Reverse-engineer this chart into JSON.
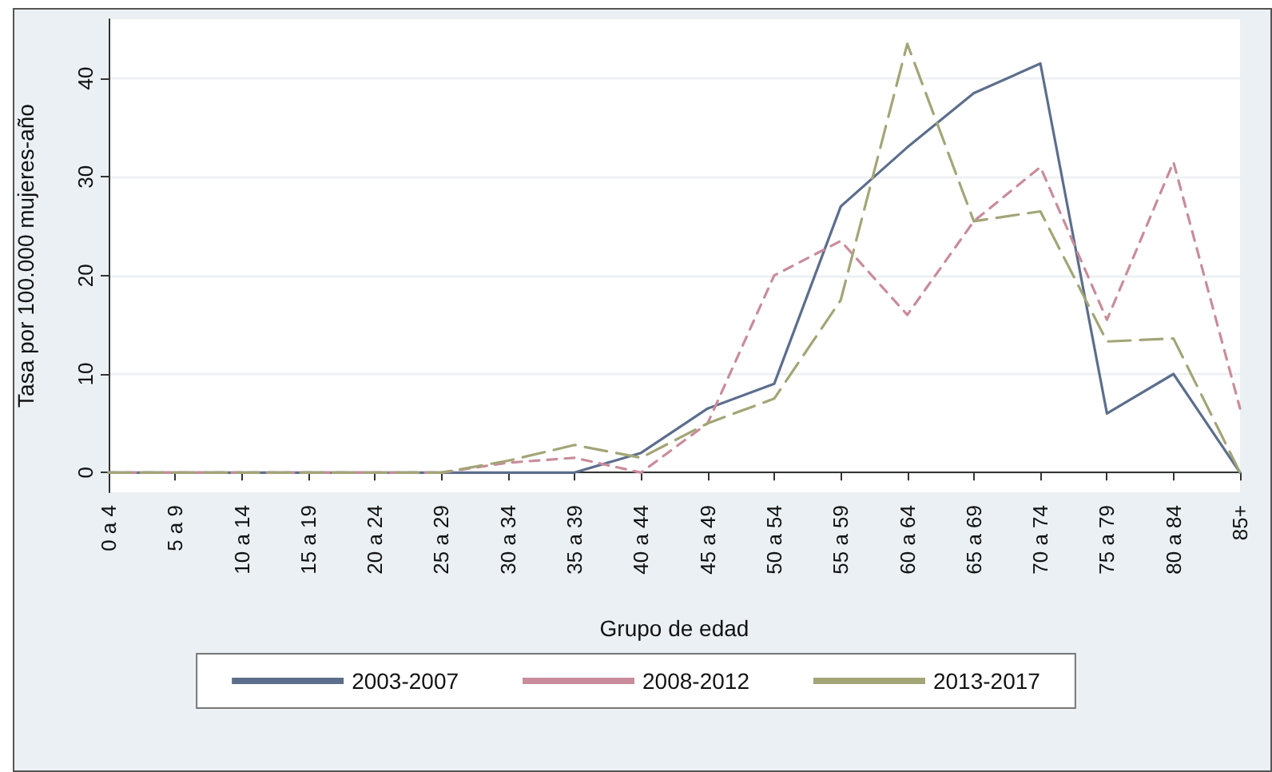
{
  "chart_data": {
    "type": "line",
    "xlabel": "Grupo de edad",
    "ylabel": "Tasa por 100.000 mujeres-año",
    "categories": [
      "0 a 4",
      "5 a 9",
      "10 a 14",
      "15 a 19",
      "20 a 24",
      "25 a 29",
      "30 a 34",
      "35 a 39",
      "40 a 44",
      "45 a 49",
      "50 a 54",
      "55 a 59",
      "60 a 64",
      "65 a 69",
      "70 a 74",
      "75 a 79",
      "80 a 84",
      "85+"
    ],
    "series": [
      {
        "name": "2003-2007",
        "color": "#5c6e8c",
        "line_style": "solid",
        "values": [
          0,
          0,
          0,
          0,
          0,
          0,
          0,
          0,
          2,
          6.5,
          9,
          27,
          33,
          38.5,
          41.5,
          6,
          10,
          0
        ]
      },
      {
        "name": "2008-2012",
        "color": "#c98c9a",
        "line_style": "dashed",
        "values": [
          0,
          0,
          0,
          0,
          0,
          0,
          1,
          1.5,
          0,
          5,
          20,
          23.5,
          16,
          25.5,
          31,
          15.5,
          31.5,
          6.5
        ]
      },
      {
        "name": "2013-2017",
        "color": "#a3a577",
        "line_style": "dashed",
        "values": [
          0,
          0,
          0,
          0,
          0,
          0,
          1.2,
          2.8,
          1.5,
          5,
          7.5,
          17.5,
          43.5,
          25.5,
          26.5,
          13.3,
          13.6,
          0
        ]
      }
    ],
    "ylim": [
      -2,
      46
    ],
    "yticks": [
      0,
      10,
      20,
      30,
      40
    ],
    "grid": "y",
    "legend": "bottom",
    "marker": "none"
  }
}
